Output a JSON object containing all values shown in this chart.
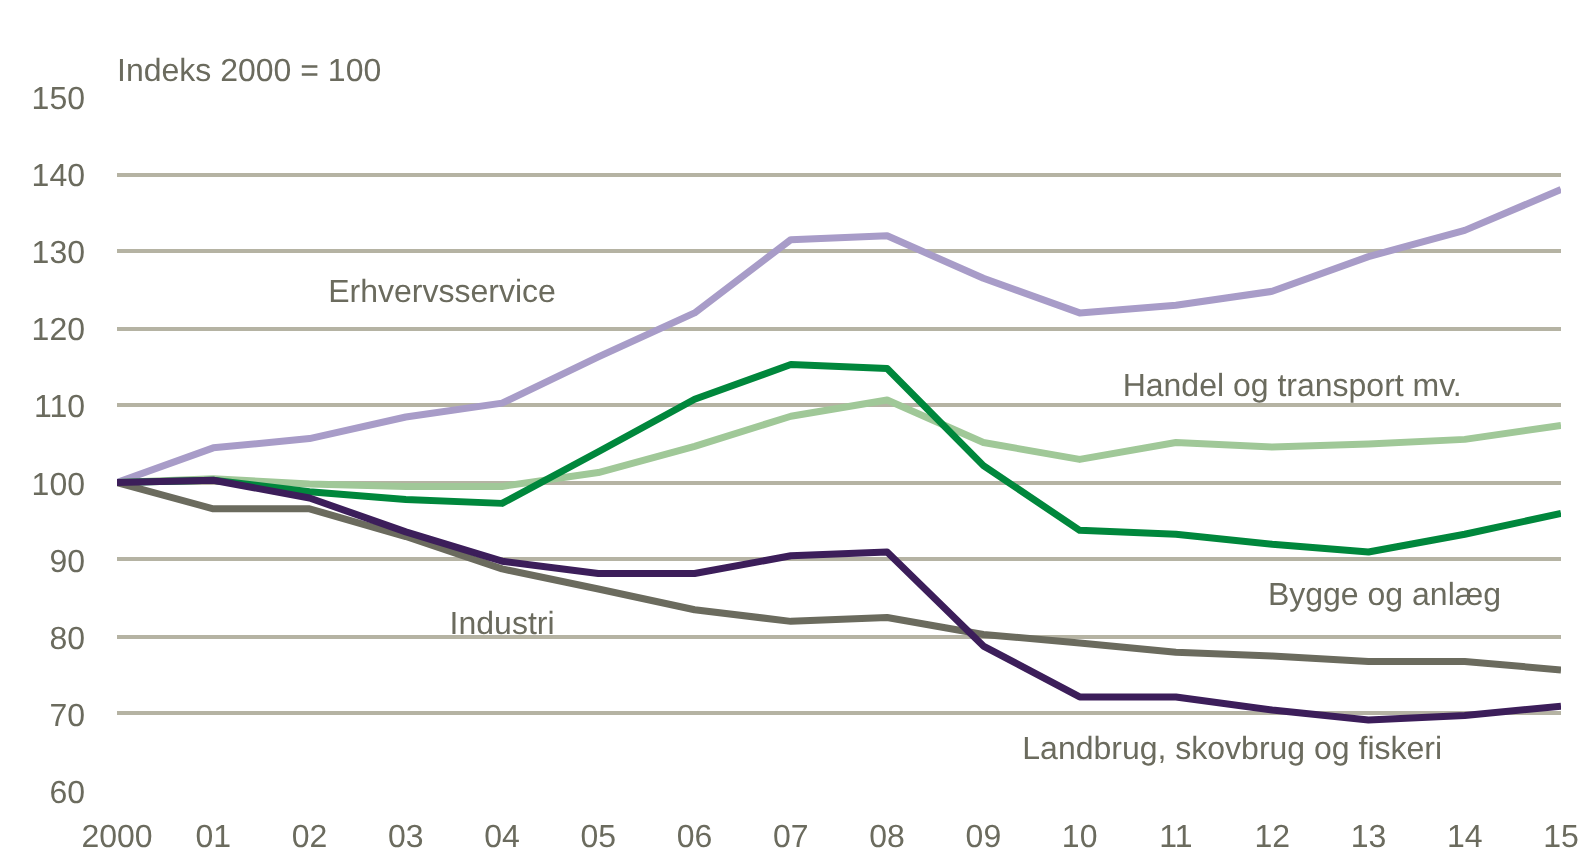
{
  "chart_data": {
    "type": "line",
    "ylabel": "Indeks 2000 = 100",
    "x": [
      2000,
      2001,
      2002,
      2003,
      2004,
      2005,
      2006,
      2007,
      2008,
      2009,
      2010,
      2011,
      2012,
      2013,
      2014,
      2015
    ],
    "xlim": [
      2000,
      2015
    ],
    "xticks": [
      2000,
      {
        "value": 2001,
        "label": "01"
      },
      {
        "value": 2002,
        "label": "02"
      },
      {
        "value": 2003,
        "label": "03"
      },
      {
        "value": 2004,
        "label": "04"
      },
      {
        "value": 2005,
        "label": "05"
      },
      {
        "value": 2006,
        "label": "06"
      },
      {
        "value": 2007,
        "label": "07"
      },
      {
        "value": 2008,
        "label": "08"
      },
      {
        "value": 2009,
        "label": "09"
      },
      {
        "value": 2010,
        "label": "10"
      },
      {
        "value": 2011,
        "label": "11"
      },
      {
        "value": 2012,
        "label": "12"
      },
      {
        "value": 2013,
        "label": "13"
      },
      {
        "value": 2014,
        "label": "14"
      },
      {
        "value": 2015,
        "label": "15"
      }
    ],
    "ylim": [
      60,
      150
    ],
    "yticks": [
      60,
      70,
      80,
      90,
      100,
      110,
      120,
      130,
      140,
      150
    ],
    "grid": "y",
    "legend": false,
    "marker": "none",
    "line_style": "solid",
    "series": [
      {
        "name": "Erhvervsservice",
        "color": "#a89cc8",
        "values": [
          100,
          104.5,
          105.7,
          108.5,
          110.3,
          116.3,
          122,
          131.5,
          132,
          126.5,
          122,
          123,
          124.8,
          129.3,
          132.7,
          138
        ]
      },
      {
        "name": "Handel og transport mv.",
        "color": "#a0c898",
        "values": [
          100,
          100.5,
          99.8,
          99.5,
          99.5,
          101.3,
          104.7,
          108.6,
          110.7,
          105.2,
          103,
          105.2,
          104.6,
          105,
          105.6,
          107.4
        ]
      },
      {
        "name": "Bygge og anlæg",
        "color": "#00873c",
        "values": [
          100,
          100.3,
          98.8,
          97.8,
          97.3,
          104,
          110.8,
          115.3,
          114.8,
          102.2,
          93.8,
          93.3,
          92,
          91,
          93.3,
          96
        ]
      },
      {
        "name": "Industri",
        "color": "#6b6b5e",
        "values": [
          100,
          96.6,
          96.6,
          93,
          88.8,
          86.2,
          83.5,
          82,
          82.5,
          80.3,
          79.2,
          78,
          77.5,
          76.8,
          76.8,
          75.7
        ]
      },
      {
        "name": "Landbrug, skovbrug og fiskeri",
        "color": "#3c1e5a",
        "values": [
          100,
          100.3,
          98,
          93.6,
          89.8,
          88.2,
          88.2,
          90.5,
          91,
          78.8,
          72.2,
          72.2,
          70.5,
          69.2,
          69.8,
          71
        ]
      }
    ]
  }
}
